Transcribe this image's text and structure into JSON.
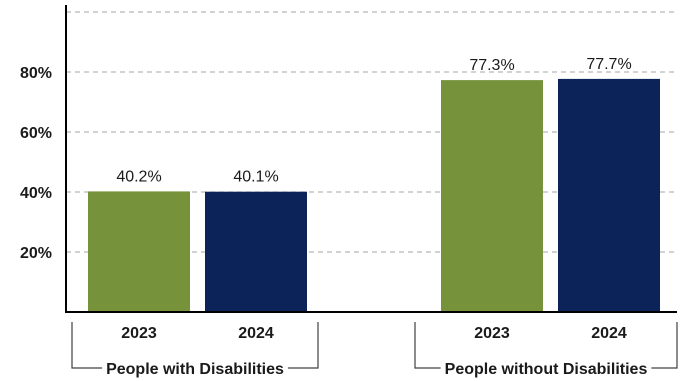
{
  "chart_data": {
    "type": "bar",
    "title": "",
    "xlabel": "",
    "ylabel": "",
    "ylim": [
      0,
      100
    ],
    "yticks": [
      20,
      40,
      60,
      80
    ],
    "ytick_labels": [
      "20%",
      "40%",
      "60%",
      "80%"
    ],
    "grid": true,
    "legend": "none",
    "groups": [
      {
        "label": "People with Disabilities",
        "bars": [
          {
            "category": "2023",
            "value": 40.2,
            "label": "40.2%"
          },
          {
            "category": "2024",
            "value": 40.1,
            "label": "40.1%"
          }
        ]
      },
      {
        "label": "People without Disabilities",
        "bars": [
          {
            "category": "2023",
            "value": 77.3,
            "label": "77.3%"
          },
          {
            "category": "2024",
            "value": 77.7,
            "label": "77.7%"
          }
        ]
      }
    ],
    "colors": {
      "2023": "#76933c",
      "2024": "#0b2358"
    }
  }
}
